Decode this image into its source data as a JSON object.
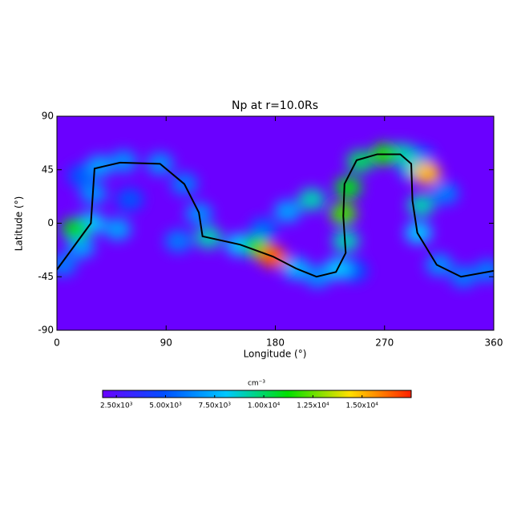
{
  "chart_data": {
    "type": "map",
    "title": "Np at r=10.0Rs",
    "xlabel": "Longitude (°)",
    "ylabel": "Latitude (°)",
    "xlim": [
      0,
      360
    ],
    "xticks": [
      0,
      90,
      180,
      270,
      360
    ],
    "ylim": [
      -90,
      90
    ],
    "yticks": [
      -90,
      -45,
      0,
      45,
      90
    ],
    "background": 1500,
    "colormap": [
      "#6a00ff",
      "#0050ff",
      "#00c8ff",
      "#00e000",
      "#ffe000",
      "#ff2000"
    ],
    "clim": [
      1800,
      17500
    ],
    "colorbar_label": "cm⁻³",
    "cticks": [
      {
        "value": 2500,
        "label": "2.50x10³"
      },
      {
        "value": 5000,
        "label": "5.00x10³"
      },
      {
        "value": 7500,
        "label": "7.50x10³"
      },
      {
        "value": 10000,
        "label": "1.00x10⁴"
      },
      {
        "value": 12500,
        "label": "1.25x10⁴"
      },
      {
        "value": 15000,
        "label": "1.50x10⁴"
      }
    ],
    "features": [
      {
        "lon": 60,
        "lat": 20,
        "value": 5000
      },
      {
        "lon": 20,
        "lat": 40,
        "value": 5000
      },
      {
        "lon": 245,
        "lat": -40,
        "value": 5000
      },
      {
        "lon": 170,
        "lat": -5,
        "value": 5500
      },
      {
        "lon": 300,
        "lat": 55,
        "value": 5500
      },
      {
        "lon": 5,
        "lat": -35,
        "value": 6000
      },
      {
        "lon": 105,
        "lat": 33,
        "value": 6000
      },
      {
        "lon": 335,
        "lat": -45,
        "value": 6000
      },
      {
        "lon": 355,
        "lat": -40,
        "value": 6000
      },
      {
        "lon": 100,
        "lat": -15,
        "value": 6000
      },
      {
        "lon": 320,
        "lat": 25,
        "value": 6000
      },
      {
        "lon": 30,
        "lat": 25,
        "value": 6500
      },
      {
        "lon": 55,
        "lat": 52,
        "value": 6500
      },
      {
        "lon": 85,
        "lat": 50,
        "value": 6500
      },
      {
        "lon": 117,
        "lat": 8,
        "value": 6500
      },
      {
        "lon": 215,
        "lat": -45,
        "value": 6500
      },
      {
        "lon": 315,
        "lat": -35,
        "value": 6500
      },
      {
        "lon": 20,
        "lat": -20,
        "value": 7000
      },
      {
        "lon": 35,
        "lat": 48,
        "value": 7000
      },
      {
        "lon": 50,
        "lat": -5,
        "value": 7000
      },
      {
        "lon": 190,
        "lat": 10,
        "value": 7000
      },
      {
        "lon": 197,
        "lat": -38,
        "value": 7500
      },
      {
        "lon": 28,
        "lat": 0,
        "value": 8000
      },
      {
        "lon": 150,
        "lat": -18,
        "value": 8000
      },
      {
        "lon": 232,
        "lat": -38,
        "value": 8000
      },
      {
        "lon": 298,
        "lat": -8,
        "value": 8000
      },
      {
        "lon": 294,
        "lat": 45,
        "value": 8500
      },
      {
        "lon": 125,
        "lat": -12,
        "value": 9000
      },
      {
        "lon": 238,
        "lat": -15,
        "value": 9000
      },
      {
        "lon": 300,
        "lat": 15,
        "value": 9000
      },
      {
        "lon": 285,
        "lat": 58,
        "value": 9000
      },
      {
        "lon": 210,
        "lat": 20,
        "value": 9000
      },
      {
        "lon": 250,
        "lat": 52,
        "value": 10000
      },
      {
        "lon": 15,
        "lat": -5,
        "value": 11000
      },
      {
        "lon": 165,
        "lat": -20,
        "value": 11000
      },
      {
        "lon": 240,
        "lat": 30,
        "value": 11000
      },
      {
        "lon": 270,
        "lat": 58,
        "value": 11500
      },
      {
        "lon": 236,
        "lat": 8,
        "value": 12000
      },
      {
        "lon": 305,
        "lat": 42,
        "value": 15000
      },
      {
        "lon": 178,
        "lat": -28,
        "value": 16500
      }
    ],
    "contour": {
      "color": "#000000",
      "x": [
        0,
        28,
        31,
        52,
        85,
        105,
        117,
        120,
        151,
        178,
        197,
        214,
        230,
        238,
        236,
        237,
        247,
        264,
        283,
        292,
        293,
        297,
        313,
        333,
        360
      ],
      "y": [
        -39,
        0,
        46,
        51,
        50,
        33,
        9,
        -11,
        -18,
        -28,
        -38,
        -45,
        -41,
        -25,
        6,
        33,
        53,
        58,
        58,
        50,
        19,
        -8,
        -35,
        -45,
        -40
      ]
    }
  }
}
